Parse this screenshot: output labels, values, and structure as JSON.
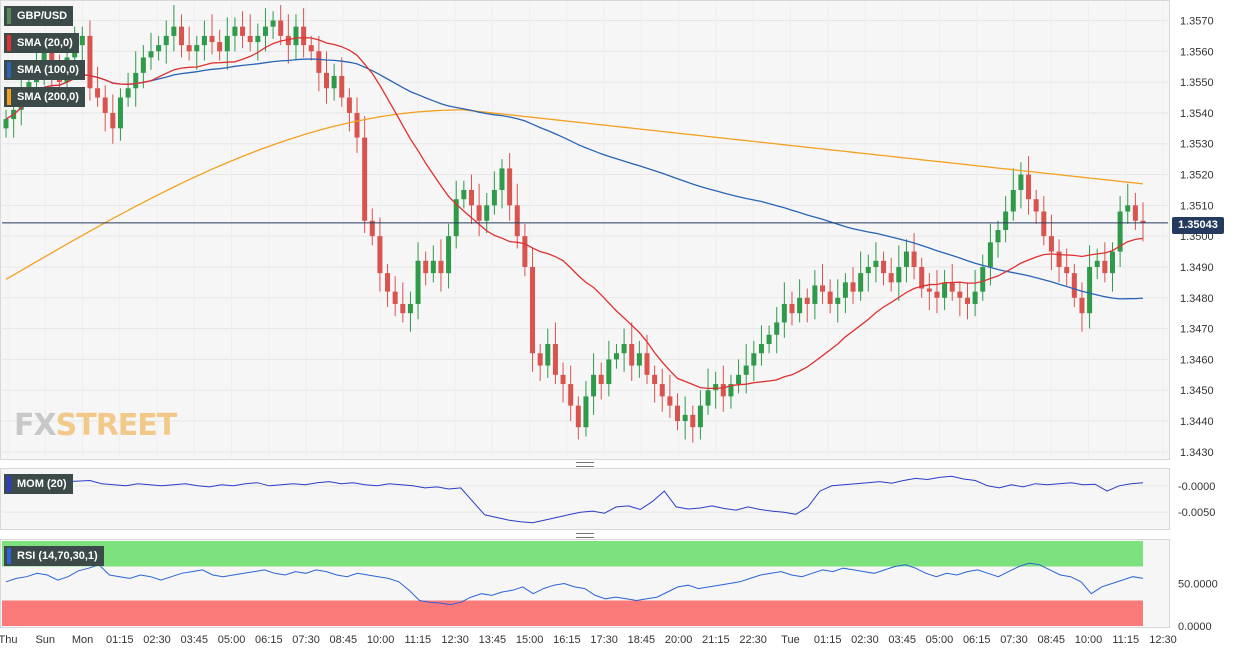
{
  "legends": {
    "symbol": {
      "label": "GBP/USD",
      "color": "#5a8a5a"
    },
    "sma20": {
      "label": "SMA (20,0)",
      "color": "#e03030"
    },
    "sma100": {
      "label": "SMA (100,0)",
      "color": "#2a64b4"
    },
    "sma200": {
      "label": "SMA (200,0)",
      "color": "#f5a020"
    },
    "mom": {
      "label": "MOM (20)",
      "color": "#2a3cc8"
    },
    "rsi": {
      "label": "RSI (14,70,30,1)",
      "color": "#2a64d8"
    }
  },
  "watermark": {
    "part1": "FX",
    "part2": "STREET"
  },
  "current_price": "1.35043",
  "price_axis": [
    "1.3570",
    "1.3560",
    "1.3550",
    "1.3540",
    "1.3530",
    "1.3520",
    "1.3510",
    "1.3500",
    "1.3490",
    "1.3480",
    "1.3470",
    "1.3460",
    "1.3450",
    "1.3440",
    "1.3430"
  ],
  "mom_axis": [
    "-0.0000",
    "-0.0050"
  ],
  "rsi_axis": [
    "50.0000",
    "0.0000"
  ],
  "time_axis": [
    "Thu",
    "Sun",
    "Mon",
    "01:15",
    "02:30",
    "03:45",
    "05:00",
    "06:15",
    "07:30",
    "08:45",
    "10:00",
    "11:15",
    "12:30",
    "13:45",
    "15:00",
    "16:15",
    "17:30",
    "18:45",
    "20:00",
    "21:15",
    "22:30",
    "Tue",
    "01:15",
    "02:30",
    "03:45",
    "05:00",
    "06:15",
    "07:30",
    "08:45",
    "10:00",
    "11:15",
    "12:30"
  ],
  "colors": {
    "up": "#2e9a4a",
    "down": "#d9534f",
    "rsi_overbought": "#7de27d",
    "rsi_oversold": "#fa7a7a"
  },
  "chart_data": [
    {
      "type": "candlestick",
      "title": "GBP/USD",
      "ylim": [
        1.3428,
        1.3576
      ],
      "last_price": 1.35043,
      "close": [
        1.3538,
        1.3541,
        1.3546,
        1.355,
        1.3555,
        1.356,
        1.3552,
        1.355,
        1.3558,
        1.3562,
        1.3565,
        1.3548,
        1.3545,
        1.354,
        1.3535,
        1.3545,
        1.3548,
        1.3553,
        1.3558,
        1.356,
        1.3562,
        1.3565,
        1.3568,
        1.3562,
        1.356,
        1.3562,
        1.3565,
        1.3563,
        1.356,
        1.3565,
        1.3568,
        1.3565,
        1.3563,
        1.3565,
        1.3568,
        1.357,
        1.3565,
        1.3562,
        1.3568,
        1.3562,
        1.356,
        1.3553,
        1.3548,
        1.3552,
        1.3545,
        1.354,
        1.3532,
        1.3505,
        1.35,
        1.3488,
        1.3482,
        1.3478,
        1.3475,
        1.3478,
        1.3492,
        1.3488,
        1.3492,
        1.3488,
        1.35,
        1.3512,
        1.3515,
        1.351,
        1.3505,
        1.351,
        1.3515,
        1.3522,
        1.351,
        1.35,
        1.349,
        1.3462,
        1.3458,
        1.3465,
        1.3455,
        1.3452,
        1.3445,
        1.3438,
        1.3448,
        1.3455,
        1.3452,
        1.346,
        1.3462,
        1.3465,
        1.3458,
        1.3462,
        1.3455,
        1.3452,
        1.3448,
        1.3445,
        1.344,
        1.3442,
        1.3438,
        1.3445,
        1.345,
        1.3452,
        1.3448,
        1.3452,
        1.3455,
        1.3458,
        1.3462,
        1.3465,
        1.3468,
        1.3472,
        1.3478,
        1.3475,
        1.348,
        1.3478,
        1.3484,
        1.3482,
        1.3478,
        1.348,
        1.3485,
        1.3482,
        1.3488,
        1.349,
        1.3492,
        1.3488,
        1.3485,
        1.349,
        1.3495,
        1.349,
        1.3483,
        1.3482,
        1.348,
        1.3485,
        1.3482,
        1.348,
        1.3478,
        1.3482,
        1.349,
        1.3498,
        1.3502,
        1.3508,
        1.3515,
        1.352,
        1.3512,
        1.3508,
        1.35,
        1.3495,
        1.349,
        1.3488,
        1.348,
        1.3475,
        1.349,
        1.3492,
        1.3488,
        1.3495,
        1.3508,
        1.351,
        1.3505,
        1.35043
      ],
      "sma20_last": 1.3498,
      "sma100_last": 1.3478,
      "sma200_last": 1.3518
    },
    {
      "type": "line",
      "title": "MOM (20)",
      "ylim": [
        -0.008,
        0.003
      ],
      "values": [
        0.0008,
        0.0006,
        0.0002,
        0.0004,
        0.0006,
        0.0008,
        0.0009,
        0.001,
        0.0004,
        0.0002,
        0.0,
        0.0004,
        0.0002,
        0.0,
        0.0002,
        0.0004,
        0.0,
        -0.0002,
        0.0002,
        0.0,
        0.0004,
        0.0006,
        0.0,
        0.0002,
        0.0004,
        0.0002,
        0.0006,
        0.0008,
        0.0004,
        0.0006,
        0.0002,
        0.0,
        0.0004,
        0.0002,
        0.0,
        -0.0004,
        -0.0002,
        -0.0006,
        -0.0004,
        -0.003,
        -0.0055,
        -0.006,
        -0.0065,
        -0.0068,
        -0.007,
        -0.0065,
        -0.006,
        -0.0055,
        -0.005,
        -0.0048,
        -0.0052,
        -0.004,
        -0.0038,
        -0.0045,
        -0.003,
        -0.001,
        -0.004,
        -0.0044,
        -0.0042,
        -0.0038,
        -0.0043,
        -0.0046,
        -0.004,
        -0.0045,
        -0.0048,
        -0.005,
        -0.0054,
        -0.004,
        -0.001,
        0.0,
        0.0002,
        0.0004,
        0.0006,
        0.0008,
        0.0005,
        0.001,
        0.0014,
        0.0012,
        0.0016,
        0.0018,
        0.0013,
        0.001,
        0.0,
        -0.0004,
        0.0002,
        -0.0002,
        0.0004,
        0.0002,
        0.0004,
        0.0006,
        0.0002,
        0.0003,
        -0.001,
        0.0,
        0.0004,
        0.0006
      ],
      "zero_line": 0
    },
    {
      "type": "line",
      "title": "RSI (14,70,30,1)",
      "ylim": [
        0,
        100
      ],
      "overbought": 70,
      "oversold": 30,
      "values": [
        52,
        56,
        58,
        62,
        60,
        54,
        58,
        65,
        68,
        72,
        60,
        58,
        56,
        60,
        58,
        54,
        58,
        62,
        64,
        66,
        60,
        58,
        60,
        62,
        64,
        66,
        62,
        60,
        64,
        62,
        66,
        64,
        60,
        58,
        62,
        60,
        58,
        56,
        52,
        42,
        30,
        28,
        27,
        25,
        28,
        34,
        38,
        36,
        40,
        42,
        46,
        38,
        44,
        48,
        50,
        46,
        44,
        36,
        32,
        34,
        32,
        30,
        32,
        34,
        40,
        46,
        48,
        44,
        46,
        48,
        50,
        52,
        56,
        60,
        62,
        64,
        60,
        58,
        62,
        66,
        64,
        68,
        66,
        64,
        62,
        66,
        70,
        72,
        68,
        62,
        58,
        62,
        60,
        64,
        66,
        62,
        58,
        64,
        70,
        74,
        72,
        66,
        60,
        58,
        52,
        38,
        46,
        50,
        54,
        58,
        56
      ]
    }
  ]
}
